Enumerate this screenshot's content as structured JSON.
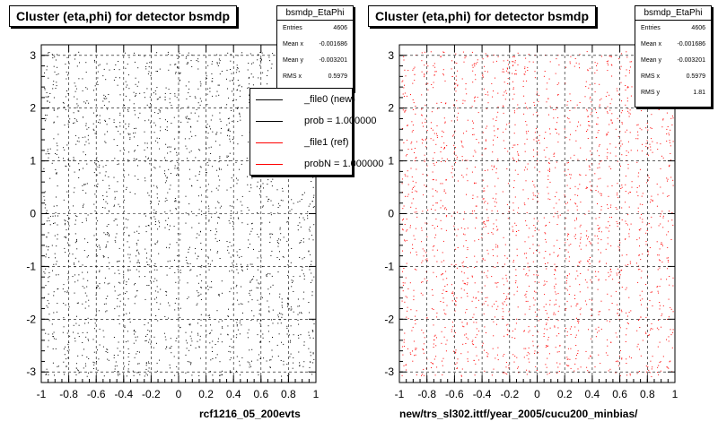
{
  "chart_data": [
    {
      "type": "scatter",
      "title": "Cluster (eta,phi) for detector bsmdp",
      "xlabel": "rcf1216_05_200evts",
      "ylabel": "",
      "xlim": [
        -1,
        1
      ],
      "ylim": [
        -3.2,
        3.2
      ],
      "xticks": [
        "-1",
        "-0.8",
        "-0.6",
        "-0.4",
        "-0.2",
        "0",
        "0.2",
        "0.4",
        "0.6",
        "0.8",
        "1"
      ],
      "yticks": [
        "-3",
        "-2",
        "-1",
        "0",
        "1",
        "2",
        "3"
      ],
      "grid": true,
      "marker_color": "#000000",
      "eta_columns": [
        -0.96,
        -0.9,
        -0.82,
        -0.75,
        -0.68,
        -0.6,
        -0.53,
        -0.45,
        -0.38,
        -0.31,
        -0.23,
        -0.16,
        -0.08,
        -0.01,
        0.07,
        0.14,
        0.22,
        0.29,
        0.37,
        0.44,
        0.52,
        0.59,
        0.66,
        0.74,
        0.81,
        0.89,
        0.96
      ],
      "stats": {
        "name": "bsmdp_EtaPhi",
        "entries_label": "Entries",
        "entries": "4606",
        "mean_x_label": "Mean x",
        "mean_x": "-0.001686",
        "mean_y_label": "Mean y",
        "mean_y": "-0.003201",
        "rms_x_label": "RMS x",
        "rms_x": "0.5979"
      },
      "legend": {
        "placement": "top-right",
        "entries": [
          {
            "label": "_file0 (new)",
            "color": "#000000"
          },
          {
            "label": "prob = 1.000000",
            "color": "#000000"
          },
          {
            "label": "_file1 (ref)",
            "color": "#ff0000"
          },
          {
            "label": "probN = 1.000000",
            "color": "#ff0000"
          }
        ]
      }
    },
    {
      "type": "scatter",
      "title": "Cluster (eta,phi) for detector bsmdp",
      "xlabel": "new/trs_sl302.ittf/year_2005/cucu200_minbias/",
      "ylabel": "",
      "xlim": [
        -1,
        1
      ],
      "ylim": [
        -3.2,
        3.2
      ],
      "xticks": [
        "-1",
        "-0.8",
        "-0.6",
        "-0.4",
        "-0.2",
        "0",
        "0.2",
        "0.4",
        "0.6",
        "0.8",
        "1"
      ],
      "yticks": [
        "-3",
        "-2",
        "-1",
        "0",
        "1",
        "2",
        "3"
      ],
      "grid": true,
      "marker_color": "#ff0000",
      "eta_columns": [
        -0.96,
        -0.9,
        -0.82,
        -0.75,
        -0.68,
        -0.6,
        -0.53,
        -0.45,
        -0.38,
        -0.31,
        -0.23,
        -0.16,
        -0.08,
        -0.01,
        0.07,
        0.14,
        0.22,
        0.29,
        0.37,
        0.44,
        0.52,
        0.59,
        0.66,
        0.74,
        0.81,
        0.89,
        0.96
      ],
      "stats": {
        "name": "bsmdp_EtaPhi",
        "entries_label": "Entries",
        "entries": "4606",
        "mean_x_label": "Mean x",
        "mean_x": "-0.001686",
        "mean_y_label": "Mean y",
        "mean_y": "-0.003201",
        "rms_x_label": "RMS x",
        "rms_x": "0.5979",
        "rms_y_label": "RMS y",
        "rms_y": "1.81"
      }
    }
  ]
}
